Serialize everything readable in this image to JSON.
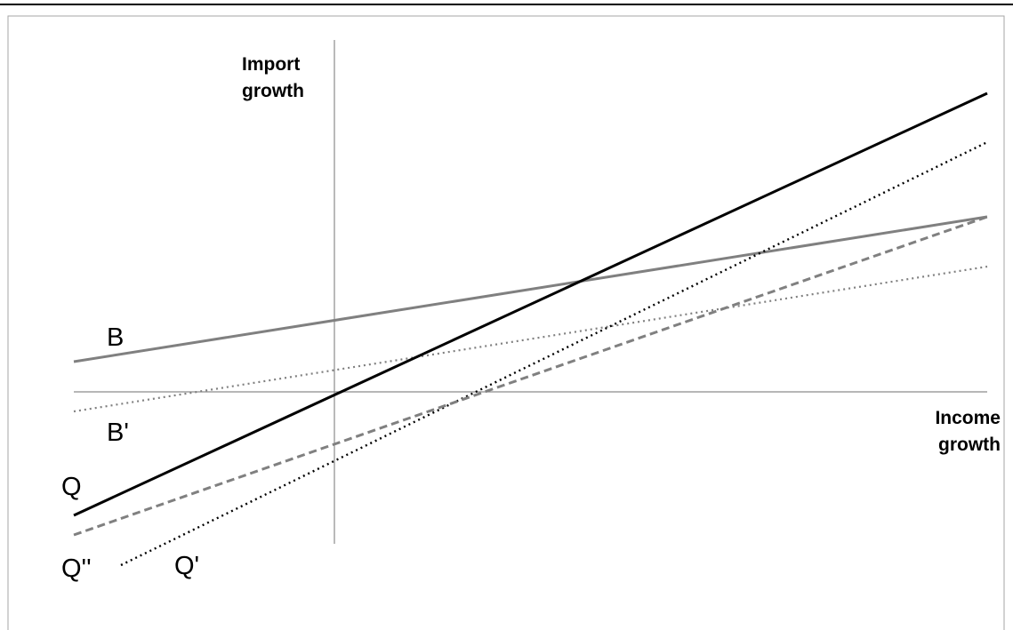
{
  "diagram": {
    "axes": {
      "y_title_line1": "Import",
      "y_title_line2": "growth",
      "x_title_line1": "Income",
      "x_title_line2": "growth"
    },
    "curves": {
      "B": {
        "label": "B",
        "color": "#808080",
        "style": "solid"
      },
      "B_prime": {
        "label": "B'",
        "color": "#808080",
        "style": "dotted"
      },
      "Q": {
        "label": "Q",
        "color": "#000000",
        "style": "solid"
      },
      "Q_prime": {
        "label": "Q'",
        "color": "#000000",
        "style": "dotted"
      },
      "Q_double_prime": {
        "label": "Q''",
        "color": "#808080",
        "style": "dashed"
      }
    }
  }
}
